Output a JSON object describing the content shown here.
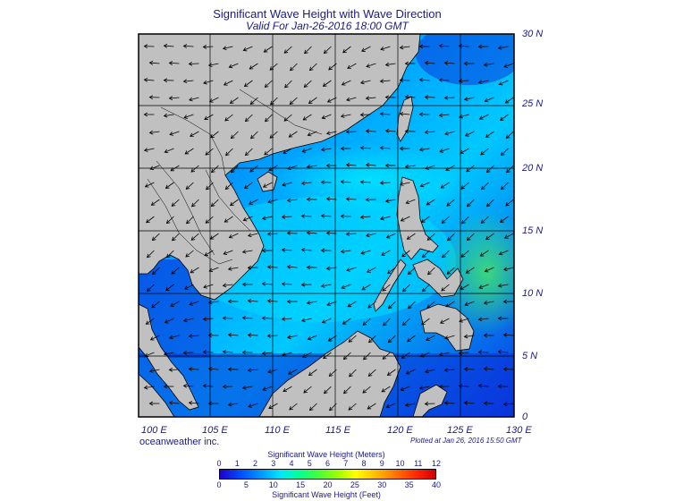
{
  "title": "Significant Wave Height with Wave Direction",
  "subtitle": "Valid For Jan-26-2016 18:00 GMT",
  "lat_labels": [
    "30 N",
    "25 N",
    "20 N",
    "15 N",
    "10 N",
    "5 N",
    "0"
  ],
  "lon_labels": [
    "100 E",
    "105 E",
    "110 E",
    "115 E",
    "120 E",
    "125 E",
    "130 E"
  ],
  "brand": "oceanweather inc.",
  "plotted_note": "Plotted at Jan 26, 2016 15:50 GMT",
  "colorbar": {
    "top_title": "Significant Wave Height (Meters)",
    "meters_ticks": [
      "0",
      "1",
      "2",
      "3",
      "4",
      "5",
      "6",
      "7",
      "8",
      "9",
      "10",
      "11",
      "12"
    ],
    "feet_ticks": [
      "0",
      "5",
      "10",
      "15",
      "20",
      "25",
      "30",
      "35",
      "40"
    ],
    "bottom_title": "Significant Wave Height (Feet)"
  },
  "colors": {
    "land": "#c0c0c0",
    "border": "#000000",
    "sea_low": "#0a2fd8",
    "sea_mid": "#00a8ff",
    "sea_high": "#00e8ff",
    "sea_peak": "#40e070",
    "text": "#1a1a8a"
  }
}
